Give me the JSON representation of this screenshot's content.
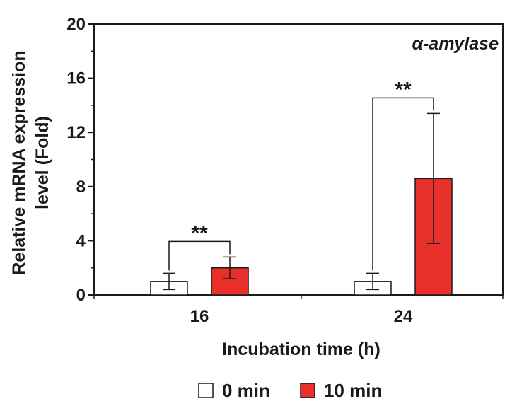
{
  "chart_data": {
    "type": "bar",
    "title": "",
    "annotation": "α-amylase",
    "xlabel": "Incubation time (h)",
    "ylabel_lines": [
      "Relative mRNA expression",
      "level (Fold)"
    ],
    "ylim": [
      0,
      20
    ],
    "yticks": [
      "0",
      "4",
      "8",
      "12",
      "16",
      "20"
    ],
    "ytick_values": [
      0,
      4,
      8,
      12,
      16,
      20
    ],
    "categories": [
      "16",
      "24"
    ],
    "series": [
      {
        "name": "0 min",
        "values": [
          1.0,
          1.0
        ],
        "errors": [
          0.6,
          0.6
        ],
        "color": "#ffffff"
      },
      {
        "name": "10 min",
        "values": [
          2.0,
          8.6
        ],
        "errors": [
          0.8,
          4.8
        ],
        "color": "#e8302a"
      }
    ],
    "significance": [
      "**",
      "**"
    ],
    "legend_position": "bottom"
  }
}
